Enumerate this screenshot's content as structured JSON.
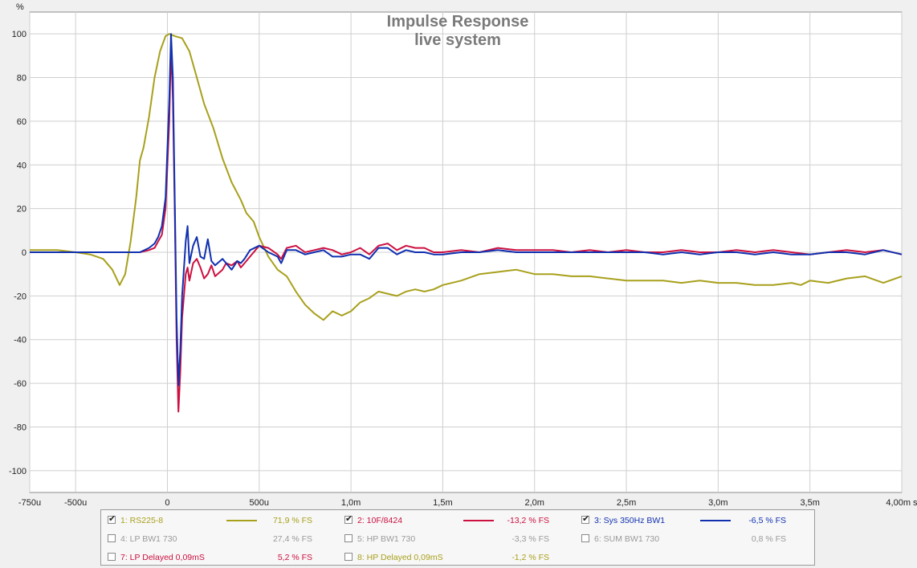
{
  "chart_data": {
    "type": "line",
    "title": "Impulse Response",
    "subtitle": "live system",
    "y_unit": "%",
    "x_unit": "s",
    "xlim": [
      -0.00075,
      0.004
    ],
    "ylim": [
      -110,
      110
    ],
    "grid": true,
    "x_ticks": [
      {
        "v": -0.00075,
        "label": "-750u"
      },
      {
        "v": -0.0005,
        "label": "-500u"
      },
      {
        "v": 0,
        "label": "0"
      },
      {
        "v": 0.0005,
        "label": "500u"
      },
      {
        "v": 0.001,
        "label": "1,0m"
      },
      {
        "v": 0.0015,
        "label": "1,5m"
      },
      {
        "v": 0.002,
        "label": "2,0m"
      },
      {
        "v": 0.0025,
        "label": "2,5m"
      },
      {
        "v": 0.003,
        "label": "3,0m"
      },
      {
        "v": 0.0035,
        "label": "3,5m"
      },
      {
        "v": 0.004,
        "label": "4,00m s"
      }
    ],
    "y_ticks": [
      {
        "v": 100,
        "label": "100"
      },
      {
        "v": 80,
        "label": "80"
      },
      {
        "v": 60,
        "label": "60"
      },
      {
        "v": 40,
        "label": "40"
      },
      {
        "v": 20,
        "label": "20"
      },
      {
        "v": 0,
        "label": "0"
      },
      {
        "v": -20,
        "label": "-20"
      },
      {
        "v": -40,
        "label": "-40"
      },
      {
        "v": -60,
        "label": "-60"
      },
      {
        "v": -80,
        "label": "-80"
      },
      {
        "v": -100,
        "label": "-100"
      }
    ],
    "series": [
      {
        "name": "1: RS225-8",
        "color": "#a8a01c",
        "points": [
          [
            -0.00075,
            1
          ],
          [
            -0.0006,
            1
          ],
          [
            -0.0005,
            0
          ],
          [
            -0.00042,
            -1
          ],
          [
            -0.00035,
            -3
          ],
          [
            -0.0003,
            -8
          ],
          [
            -0.00026,
            -15
          ],
          [
            -0.00023,
            -10
          ],
          [
            -0.0002,
            5
          ],
          [
            -0.00017,
            25
          ],
          [
            -0.00015,
            42
          ],
          [
            -0.00013,
            48
          ],
          [
            -0.0001,
            62
          ],
          [
            -7e-05,
            80
          ],
          [
            -4e-05,
            92
          ],
          [
            -1e-05,
            99
          ],
          [
            1e-05,
            100
          ],
          [
            4e-05,
            99
          ],
          [
            8e-05,
            98
          ],
          [
            0.00012,
            92
          ],
          [
            0.00016,
            80
          ],
          [
            0.0002,
            68
          ],
          [
            0.00025,
            57
          ],
          [
            0.0003,
            43
          ],
          [
            0.00035,
            32
          ],
          [
            0.0004,
            24
          ],
          [
            0.00043,
            18
          ],
          [
            0.00047,
            14
          ],
          [
            0.0005,
            7
          ],
          [
            0.00055,
            -2
          ],
          [
            0.0006,
            -8
          ],
          [
            0.00065,
            -11
          ],
          [
            0.0007,
            -18
          ],
          [
            0.00075,
            -24
          ],
          [
            0.0008,
            -28
          ],
          [
            0.00085,
            -31
          ],
          [
            0.0009,
            -27
          ],
          [
            0.00095,
            -29
          ],
          [
            0.001,
            -27
          ],
          [
            0.00105,
            -23
          ],
          [
            0.0011,
            -21
          ],
          [
            0.00115,
            -18
          ],
          [
            0.0012,
            -19
          ],
          [
            0.00125,
            -20
          ],
          [
            0.0013,
            -18
          ],
          [
            0.00135,
            -17
          ],
          [
            0.0014,
            -18
          ],
          [
            0.00145,
            -17
          ],
          [
            0.0015,
            -15
          ],
          [
            0.0016,
            -13
          ],
          [
            0.0017,
            -10
          ],
          [
            0.0018,
            -9
          ],
          [
            0.0019,
            -8
          ],
          [
            0.002,
            -10
          ],
          [
            0.0021,
            -10
          ],
          [
            0.0022,
            -11
          ],
          [
            0.0023,
            -11
          ],
          [
            0.0024,
            -12
          ],
          [
            0.0025,
            -13
          ],
          [
            0.0026,
            -13
          ],
          [
            0.0027,
            -13
          ],
          [
            0.0028,
            -14
          ],
          [
            0.0029,
            -13
          ],
          [
            0.003,
            -14
          ],
          [
            0.0031,
            -14
          ],
          [
            0.0032,
            -15
          ],
          [
            0.0033,
            -15
          ],
          [
            0.0034,
            -14
          ],
          [
            0.00345,
            -15
          ],
          [
            0.0035,
            -13
          ],
          [
            0.0036,
            -14
          ],
          [
            0.0037,
            -12
          ],
          [
            0.0038,
            -11
          ],
          [
            0.0039,
            -14
          ],
          [
            0.004,
            -11
          ]
        ]
      },
      {
        "name": "2: 10F/8424",
        "color": "#cc1040",
        "points": [
          [
            -0.00075,
            0
          ],
          [
            -0.0005,
            0
          ],
          [
            -0.0003,
            0
          ],
          [
            -0.0002,
            0
          ],
          [
            -0.00015,
            0
          ],
          [
            -0.0001,
            1
          ],
          [
            -7e-05,
            2
          ],
          [
            -5e-05,
            5
          ],
          [
            -3e-05,
            8
          ],
          [
            -1e-05,
            20
          ],
          [
            1e-05,
            60
          ],
          [
            2e-05,
            95
          ],
          [
            3e-05,
            70
          ],
          [
            4e-05,
            20
          ],
          [
            5e-05,
            -40
          ],
          [
            6e-05,
            -73
          ],
          [
            7e-05,
            -55
          ],
          [
            8e-05,
            -30
          ],
          [
            0.0001,
            -10
          ],
          [
            0.00011,
            -7
          ],
          [
            0.00012,
            -13
          ],
          [
            0.00014,
            -5
          ],
          [
            0.00016,
            -3
          ],
          [
            0.00018,
            -7
          ],
          [
            0.0002,
            -12
          ],
          [
            0.00022,
            -10
          ],
          [
            0.00024,
            -6
          ],
          [
            0.00026,
            -11
          ],
          [
            0.0003,
            -8
          ],
          [
            0.00032,
            -5
          ],
          [
            0.00035,
            -6
          ],
          [
            0.00038,
            -4
          ],
          [
            0.0004,
            -7
          ],
          [
            0.00042,
            -5
          ],
          [
            0.00045,
            -2
          ],
          [
            0.0005,
            3
          ],
          [
            0.00055,
            2
          ],
          [
            0.0006,
            -1
          ],
          [
            0.00062,
            -3
          ],
          [
            0.00065,
            2
          ],
          [
            0.0007,
            3
          ],
          [
            0.00075,
            0
          ],
          [
            0.0008,
            1
          ],
          [
            0.00085,
            2
          ],
          [
            0.0009,
            1
          ],
          [
            0.00095,
            -1
          ],
          [
            0.001,
            0
          ],
          [
            0.00105,
            2
          ],
          [
            0.0011,
            -1
          ],
          [
            0.00115,
            3
          ],
          [
            0.0012,
            4
          ],
          [
            0.00125,
            1
          ],
          [
            0.0013,
            3
          ],
          [
            0.00135,
            2
          ],
          [
            0.0014,
            2
          ],
          [
            0.00145,
            0
          ],
          [
            0.0015,
            0
          ],
          [
            0.0016,
            1
          ],
          [
            0.0017,
            0
          ],
          [
            0.0018,
            2
          ],
          [
            0.0019,
            1
          ],
          [
            0.002,
            1
          ],
          [
            0.0021,
            1
          ],
          [
            0.0022,
            0
          ],
          [
            0.0023,
            1
          ],
          [
            0.0024,
            0
          ],
          [
            0.0025,
            1
          ],
          [
            0.0026,
            0
          ],
          [
            0.0027,
            0
          ],
          [
            0.0028,
            1
          ],
          [
            0.0029,
            0
          ],
          [
            0.003,
            0
          ],
          [
            0.0031,
            1
          ],
          [
            0.0032,
            0
          ],
          [
            0.0033,
            1
          ],
          [
            0.0034,
            0
          ],
          [
            0.0035,
            -1
          ],
          [
            0.0036,
            0
          ],
          [
            0.0037,
            1
          ],
          [
            0.0038,
            0
          ],
          [
            0.0039,
            1
          ],
          [
            0.004,
            -1
          ]
        ]
      },
      {
        "name": "3: Sys 350Hz BW1",
        "color": "#1030b0",
        "points": [
          [
            -0.00075,
            0
          ],
          [
            -0.0005,
            0
          ],
          [
            -0.0003,
            0
          ],
          [
            -0.0002,
            0
          ],
          [
            -0.00015,
            0
          ],
          [
            -0.0001,
            2
          ],
          [
            -7e-05,
            4
          ],
          [
            -5e-05,
            7
          ],
          [
            -3e-05,
            12
          ],
          [
            -1e-05,
            25
          ],
          [
            1e-05,
            70
          ],
          [
            2e-05,
            100
          ],
          [
            3e-05,
            80
          ],
          [
            4e-05,
            25
          ],
          [
            5e-05,
            -30
          ],
          [
            6e-05,
            -61
          ],
          [
            7e-05,
            -45
          ],
          [
            8e-05,
            -20
          ],
          [
            0.0001,
            5
          ],
          [
            0.00011,
            12
          ],
          [
            0.00012,
            -5
          ],
          [
            0.00014,
            3
          ],
          [
            0.00016,
            7
          ],
          [
            0.00018,
            -2
          ],
          [
            0.0002,
            -3
          ],
          [
            0.00022,
            6
          ],
          [
            0.00024,
            -4
          ],
          [
            0.00026,
            -6
          ],
          [
            0.0003,
            -3
          ],
          [
            0.00032,
            -5
          ],
          [
            0.00035,
            -8
          ],
          [
            0.00038,
            -4
          ],
          [
            0.0004,
            -5
          ],
          [
            0.00042,
            -3
          ],
          [
            0.00045,
            1
          ],
          [
            0.0005,
            3
          ],
          [
            0.00055,
            0
          ],
          [
            0.0006,
            -2
          ],
          [
            0.00062,
            -5
          ],
          [
            0.00065,
            1
          ],
          [
            0.0007,
            1
          ],
          [
            0.00075,
            -1
          ],
          [
            0.0008,
            0
          ],
          [
            0.00085,
            1
          ],
          [
            0.0009,
            -2
          ],
          [
            0.00095,
            -2
          ],
          [
            0.001,
            -1
          ],
          [
            0.00105,
            -1
          ],
          [
            0.0011,
            -3
          ],
          [
            0.00115,
            2
          ],
          [
            0.0012,
            2
          ],
          [
            0.00125,
            -1
          ],
          [
            0.0013,
            1
          ],
          [
            0.00135,
            0
          ],
          [
            0.0014,
            0
          ],
          [
            0.00145,
            -1
          ],
          [
            0.0015,
            -1
          ],
          [
            0.0016,
            0
          ],
          [
            0.0017,
            0
          ],
          [
            0.0018,
            1
          ],
          [
            0.0019,
            0
          ],
          [
            0.002,
            0
          ],
          [
            0.0021,
            0
          ],
          [
            0.0022,
            0
          ],
          [
            0.0023,
            0
          ],
          [
            0.0024,
            0
          ],
          [
            0.0025,
            0
          ],
          [
            0.0026,
            0
          ],
          [
            0.0027,
            -1
          ],
          [
            0.0028,
            0
          ],
          [
            0.0029,
            -1
          ],
          [
            0.003,
            0
          ],
          [
            0.0031,
            0
          ],
          [
            0.0032,
            -1
          ],
          [
            0.0033,
            0
          ],
          [
            0.0034,
            -1
          ],
          [
            0.0035,
            -1
          ],
          [
            0.0036,
            0
          ],
          [
            0.0037,
            0
          ],
          [
            0.0038,
            -1
          ],
          [
            0.0039,
            1
          ],
          [
            0.004,
            -1
          ]
        ]
      }
    ]
  },
  "legend": {
    "rows": [
      [
        {
          "name": "1: RS225-8",
          "value": "71,9 % FS",
          "checked": true,
          "color": "#a8a01c",
          "line": true
        },
        {
          "name": "2: 10F/8424",
          "value": "-13,2 % FS",
          "checked": true,
          "color": "#cc1040",
          "line": true
        },
        {
          "name": "3: Sys 350Hz BW1",
          "value": "-6,5 % FS",
          "checked": true,
          "color": "#1030b0",
          "line": true
        }
      ],
      [
        {
          "name": "4: LP BW1 730",
          "value": "27,4 % FS",
          "checked": false,
          "color": "#9a9a9a",
          "line": false
        },
        {
          "name": "5: HP BW1 730",
          "value": "-3,3 % FS",
          "checked": false,
          "color": "#9a9a9a",
          "line": false
        },
        {
          "name": "6: SUM BW1 730",
          "value": "0,8 % FS",
          "checked": false,
          "color": "#9a9a9a",
          "line": false
        }
      ],
      [
        {
          "name": "7: LP Delayed 0,09mS",
          "value": "5,2 % FS",
          "checked": false,
          "color": "#cc1040",
          "line": false
        },
        {
          "name": "8: HP Delayed 0,09mS",
          "value": "-1,2 % FS",
          "checked": false,
          "color": "#a8a01c",
          "line": false
        }
      ]
    ]
  }
}
